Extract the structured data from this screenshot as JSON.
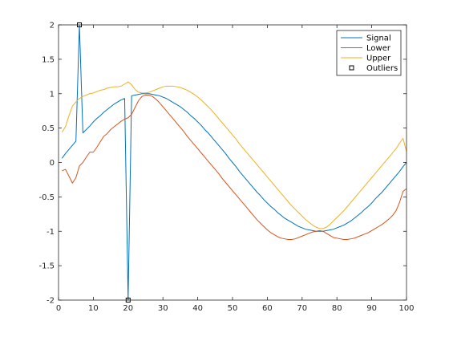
{
  "chart_data": {
    "type": "line",
    "title": "",
    "xlabel": "",
    "ylabel": "",
    "xlim": [
      0,
      100
    ],
    "ylim": [
      -2,
      2
    ],
    "xticks": [
      0,
      10,
      20,
      30,
      40,
      50,
      60,
      70,
      80,
      90,
      100
    ],
    "yticks": [
      -2,
      -1.5,
      -1,
      -0.5,
      0,
      0.5,
      1,
      1.5,
      2
    ],
    "xtick_labels": [
      "0",
      "10",
      "20",
      "30",
      "40",
      "50",
      "60",
      "70",
      "80",
      "90",
      "100"
    ],
    "ytick_labels": [
      "-2",
      "-1.5",
      "-1",
      "-0.5",
      "0",
      "0.5",
      "1",
      "1.5",
      "2"
    ],
    "grid": false,
    "legend": "top-right",
    "series": [
      {
        "name": "Signal",
        "color": "#0072BD",
        "style": "line",
        "x": [
          1,
          2,
          3,
          4,
          5,
          6,
          7,
          8,
          9,
          10,
          11,
          12,
          13,
          14,
          15,
          16,
          17,
          18,
          19,
          20,
          21,
          22,
          23,
          24,
          25,
          26,
          27,
          28,
          29,
          30,
          31,
          32,
          33,
          34,
          35,
          36,
          37,
          38,
          39,
          40,
          41,
          42,
          43,
          44,
          45,
          46,
          47,
          48,
          49,
          50,
          51,
          52,
          53,
          54,
          55,
          56,
          57,
          58,
          59,
          60,
          61,
          62,
          63,
          64,
          65,
          66,
          67,
          68,
          69,
          70,
          71,
          72,
          73,
          74,
          75,
          76,
          77,
          78,
          79,
          80,
          81,
          82,
          83,
          84,
          85,
          86,
          87,
          88,
          89,
          90,
          91,
          92,
          93,
          94,
          95,
          96,
          97,
          98,
          99,
          100
        ],
        "y": [
          0.06,
          0.13,
          0.19,
          0.25,
          0.31,
          2.0,
          0.43,
          0.48,
          0.53,
          0.59,
          0.64,
          0.68,
          0.73,
          0.77,
          0.81,
          0.85,
          0.88,
          0.91,
          0.93,
          -2.0,
          0.97,
          0.98,
          0.99,
          1.0,
          1.0,
          1.0,
          0.99,
          0.98,
          0.97,
          0.95,
          0.93,
          0.9,
          0.87,
          0.84,
          0.81,
          0.77,
          0.73,
          0.68,
          0.64,
          0.59,
          0.54,
          0.48,
          0.43,
          0.37,
          0.31,
          0.25,
          0.19,
          0.13,
          0.06,
          0.0,
          -0.06,
          -0.13,
          -0.19,
          -0.25,
          -0.31,
          -0.37,
          -0.43,
          -0.48,
          -0.54,
          -0.59,
          -0.64,
          -0.68,
          -0.73,
          -0.77,
          -0.81,
          -0.84,
          -0.87,
          -0.9,
          -0.93,
          -0.95,
          -0.97,
          -0.98,
          -0.99,
          -1.0,
          -1.0,
          -1.0,
          -0.99,
          -0.98,
          -0.97,
          -0.95,
          -0.93,
          -0.91,
          -0.88,
          -0.85,
          -0.81,
          -0.77,
          -0.73,
          -0.68,
          -0.64,
          -0.59,
          -0.53,
          -0.48,
          -0.43,
          -0.37,
          -0.31,
          -0.25,
          -0.19,
          -0.13,
          -0.06,
          0.0
        ]
      },
      {
        "name": "Lower",
        "color": "#D95319",
        "style": "line",
        "x": [
          1,
          2,
          3,
          4,
          5,
          6,
          7,
          8,
          9,
          10,
          11,
          12,
          13,
          14,
          15,
          16,
          17,
          18,
          19,
          20,
          21,
          22,
          23,
          24,
          25,
          26,
          27,
          28,
          29,
          30,
          31,
          32,
          33,
          34,
          35,
          36,
          37,
          38,
          39,
          40,
          41,
          42,
          43,
          44,
          45,
          46,
          47,
          48,
          49,
          50,
          51,
          52,
          53,
          54,
          55,
          56,
          57,
          58,
          59,
          60,
          61,
          62,
          63,
          64,
          65,
          66,
          67,
          68,
          69,
          70,
          71,
          72,
          73,
          74,
          75,
          76,
          77,
          78,
          79,
          80,
          81,
          82,
          83,
          84,
          85,
          86,
          87,
          88,
          89,
          90,
          91,
          92,
          93,
          94,
          95,
          96,
          97,
          98,
          99,
          100
        ],
        "y": [
          -0.12,
          -0.1,
          -0.2,
          -0.3,
          -0.22,
          -0.05,
          0.0,
          0.08,
          0.15,
          0.15,
          0.22,
          0.3,
          0.38,
          0.42,
          0.48,
          0.52,
          0.56,
          0.6,
          0.63,
          0.65,
          0.7,
          0.8,
          0.9,
          0.96,
          0.98,
          0.98,
          0.96,
          0.92,
          0.87,
          0.81,
          0.75,
          0.69,
          0.63,
          0.57,
          0.51,
          0.45,
          0.38,
          0.32,
          0.26,
          0.2,
          0.14,
          0.08,
          0.02,
          -0.04,
          -0.1,
          -0.16,
          -0.23,
          -0.29,
          -0.35,
          -0.41,
          -0.47,
          -0.53,
          -0.59,
          -0.65,
          -0.71,
          -0.77,
          -0.83,
          -0.88,
          -0.93,
          -0.98,
          -1.02,
          -1.05,
          -1.08,
          -1.1,
          -1.11,
          -1.12,
          -1.12,
          -1.11,
          -1.09,
          -1.07,
          -1.05,
          -1.03,
          -1.01,
          -1.0,
          -0.99,
          -1.0,
          -1.03,
          -1.06,
          -1.09,
          -1.1,
          -1.11,
          -1.12,
          -1.12,
          -1.11,
          -1.1,
          -1.08,
          -1.06,
          -1.04,
          -1.02,
          -0.99,
          -0.96,
          -0.93,
          -0.9,
          -0.86,
          -0.82,
          -0.77,
          -0.7,
          -0.58,
          -0.42,
          -0.38
        ]
      },
      {
        "name": "Upper",
        "color": "#EDB120",
        "style": "line",
        "x": [
          1,
          2,
          3,
          4,
          5,
          6,
          7,
          8,
          9,
          10,
          11,
          12,
          13,
          14,
          15,
          16,
          17,
          18,
          19,
          20,
          21,
          22,
          23,
          24,
          25,
          26,
          27,
          28,
          29,
          30,
          31,
          32,
          33,
          34,
          35,
          36,
          37,
          38,
          39,
          40,
          41,
          42,
          43,
          44,
          45,
          46,
          47,
          48,
          49,
          50,
          51,
          52,
          53,
          54,
          55,
          56,
          57,
          58,
          59,
          60,
          61,
          62,
          63,
          64,
          65,
          66,
          67,
          68,
          69,
          70,
          71,
          72,
          73,
          74,
          75,
          76,
          77,
          78,
          79,
          80,
          81,
          82,
          83,
          84,
          85,
          86,
          87,
          88,
          89,
          90,
          91,
          92,
          93,
          94,
          95,
          96,
          97,
          98,
          99,
          100
        ],
        "y": [
          0.44,
          0.52,
          0.68,
          0.82,
          0.88,
          0.93,
          0.96,
          0.98,
          1.0,
          1.01,
          1.03,
          1.05,
          1.06,
          1.08,
          1.09,
          1.1,
          1.1,
          1.11,
          1.14,
          1.17,
          1.13,
          1.06,
          1.02,
          1.01,
          1.01,
          1.02,
          1.04,
          1.06,
          1.08,
          1.1,
          1.11,
          1.11,
          1.11,
          1.1,
          1.09,
          1.07,
          1.05,
          1.02,
          0.99,
          0.95,
          0.91,
          0.86,
          0.81,
          0.76,
          0.7,
          0.64,
          0.58,
          0.52,
          0.46,
          0.4,
          0.34,
          0.27,
          0.21,
          0.15,
          0.09,
          0.03,
          -0.03,
          -0.09,
          -0.15,
          -0.21,
          -0.27,
          -0.33,
          -0.39,
          -0.45,
          -0.51,
          -0.57,
          -0.63,
          -0.68,
          -0.73,
          -0.78,
          -0.83,
          -0.87,
          -0.91,
          -0.94,
          -0.96,
          -0.96,
          -0.94,
          -0.9,
          -0.85,
          -0.8,
          -0.75,
          -0.7,
          -0.64,
          -0.58,
          -0.52,
          -0.46,
          -0.4,
          -0.34,
          -0.28,
          -0.22,
          -0.16,
          -0.1,
          -0.04,
          0.02,
          0.08,
          0.14,
          0.2,
          0.28,
          0.35,
          0.16
        ]
      },
      {
        "name": "Outliers",
        "color": "#000000",
        "style": "markers",
        "marker": "square",
        "x": [
          6,
          20
        ],
        "y": [
          2.0,
          -2.0
        ]
      }
    ]
  }
}
